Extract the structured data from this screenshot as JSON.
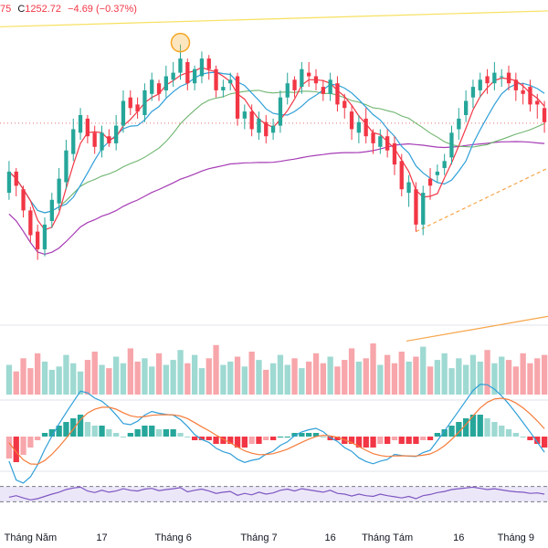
{
  "header": {
    "partial_prefix": "75",
    "close_label": "C",
    "close_value": "1252.72",
    "change": "−4.69",
    "change_pct": "(−0.37%)",
    "color_down": "#f23645"
  },
  "x_axis": {
    "ticks": [
      "Tháng Năm",
      "17",
      "Tháng 6",
      "Tháng 7",
      "16",
      "Tháng Tám",
      "16",
      "Tháng 9"
    ]
  },
  "colors": {
    "up": "#26a69a",
    "down": "#f23645",
    "vol_up": "#9ed9d2",
    "vol_down": "#f7a6ab",
    "ma_red": "#f23645",
    "ma_blue": "#2f9fd8",
    "ma_green": "#6fb56f",
    "ma_purple": "#a63bb5",
    "trend_yellow": "#f6e05e",
    "trend_orange": "#f6a54a",
    "price_line": "#e57373",
    "macd_line": "#2f9fd8",
    "signal_line": "#f57c3a",
    "rsi_line": "#7e57c2",
    "rsi_band": "#ece7f8"
  },
  "chart_data": {
    "type": "candlestick",
    "series_count": 76,
    "open": [
      1233,
      1239,
      1234,
      1228,
      1222,
      1217,
      1225,
      1230,
      1236,
      1244,
      1250,
      1254,
      1250,
      1245,
      1249,
      1247,
      1252,
      1260,
      1258,
      1255,
      1261,
      1264,
      1262,
      1265,
      1267,
      1270,
      1264,
      1266,
      1271,
      1268,
      1262,
      1264,
      1266,
      1254,
      1256,
      1250,
      1253,
      1250,
      1252,
      1260,
      1265,
      1263,
      1267,
      1266,
      1263,
      1261,
      1264,
      1259,
      1256,
      1250,
      1254,
      1250,
      1246,
      1249,
      1247,
      1242,
      1233,
      1234,
      1224,
      1237,
      1238,
      1240,
      1243,
      1251,
      1255,
      1260,
      1262,
      1266,
      1264,
      1266,
      1267,
      1265,
      1262,
      1263,
      1259,
      1257
    ],
    "close": [
      1239,
      1235,
      1228,
      1221,
      1217,
      1224,
      1231,
      1237,
      1245,
      1251,
      1255,
      1249,
      1246,
      1250,
      1247,
      1252,
      1259,
      1257,
      1256,
      1262,
      1265,
      1261,
      1266,
      1267,
      1271,
      1264,
      1268,
      1271,
      1268,
      1262,
      1263,
      1265,
      1254,
      1256,
      1251,
      1254,
      1249,
      1252,
      1260,
      1264,
      1262,
      1268,
      1266,
      1264,
      1261,
      1265,
      1258,
      1257,
      1251,
      1253,
      1249,
      1247,
      1249,
      1245,
      1241,
      1234,
      1236,
      1224,
      1233,
      1235,
      1239,
      1242,
      1250,
      1254,
      1259,
      1263,
      1265,
      1264,
      1267,
      1266,
      1264,
      1262,
      1261,
      1258,
      1258,
      1253
    ],
    "high": [
      1242,
      1240,
      1235,
      1229,
      1224,
      1226,
      1233,
      1240,
      1248,
      1254,
      1257,
      1255,
      1252,
      1252,
      1251,
      1255,
      1262,
      1262,
      1260,
      1264,
      1267,
      1265,
      1269,
      1270,
      1275,
      1271,
      1269,
      1273,
      1272,
      1269,
      1265,
      1267,
      1267,
      1258,
      1258,
      1256,
      1255,
      1254,
      1262,
      1267,
      1266,
      1270,
      1270,
      1268,
      1265,
      1267,
      1266,
      1261,
      1258,
      1255,
      1257,
      1251,
      1251,
      1251,
      1249,
      1244,
      1238,
      1236,
      1235,
      1240,
      1241,
      1244,
      1252,
      1257,
      1262,
      1265,
      1267,
      1268,
      1270,
      1268,
      1269,
      1267,
      1264,
      1265,
      1261,
      1259
    ],
    "low": [
      1231,
      1232,
      1226,
      1219,
      1214,
      1215,
      1223,
      1228,
      1234,
      1242,
      1248,
      1247,
      1244,
      1243,
      1246,
      1245,
      1250,
      1255,
      1254,
      1253,
      1259,
      1259,
      1260,
      1263,
      1265,
      1262,
      1262,
      1264,
      1265,
      1260,
      1260,
      1262,
      1252,
      1251,
      1249,
      1248,
      1247,
      1248,
      1250,
      1258,
      1260,
      1261,
      1263,
      1262,
      1259,
      1259,
      1256,
      1254,
      1248,
      1247,
      1247,
      1244,
      1244,
      1243,
      1238,
      1232,
      1229,
      1222,
      1221,
      1231,
      1236,
      1238,
      1241,
      1248,
      1253,
      1257,
      1260,
      1261,
      1262,
      1263,
      1262,
      1259,
      1258,
      1256,
      1254,
      1250
    ],
    "x_tick_labels": [
      "Tháng Năm",
      "17",
      "Tháng 6",
      "Tháng 7",
      "16",
      "Tháng Tám",
      "16",
      "Tháng 9"
    ],
    "last_close": 1252.72,
    "ylim": [
      1210,
      1285
    ],
    "volume": [
      18,
      14,
      22,
      16,
      25,
      20,
      15,
      17,
      24,
      19,
      14,
      21,
      26,
      18,
      16,
      23,
      19,
      28,
      20,
      22,
      17,
      25,
      18,
      21,
      27,
      19,
      24,
      16,
      22,
      30,
      18,
      20,
      23,
      17,
      26,
      21,
      15,
      19,
      24,
      18,
      22,
      16,
      20,
      25,
      19,
      23,
      17,
      21,
      28,
      20,
      22,
      31,
      18,
      24,
      19,
      26,
      20,
      23,
      29,
      17,
      21,
      25,
      16,
      22,
      18,
      24,
      20,
      27,
      19,
      23,
      21,
      17,
      25,
      19,
      22,
      24
    ],
    "macd_hist": [
      -6,
      -7,
      -5,
      -3,
      -1,
      1,
      2,
      3,
      4,
      5,
      6,
      4,
      3,
      3,
      2,
      1,
      0,
      1,
      2,
      3,
      3,
      2,
      2,
      2,
      1,
      0,
      -1,
      -1,
      -1,
      -2,
      -2,
      -2,
      -3,
      -3,
      -2,
      -2,
      -1,
      -1,
      0,
      0,
      1,
      1,
      1,
      1,
      0,
      -1,
      -1,
      -2,
      -2,
      -3,
      -3,
      -3,
      -2,
      -2,
      -1,
      -2,
      -2,
      -2,
      -1,
      -1,
      1,
      2,
      3,
      4,
      5,
      6,
      6,
      5,
      4,
      3,
      2,
      1,
      0,
      -1,
      -2,
      -3
    ],
    "rsi": [
      42,
      46,
      40,
      35,
      38,
      44,
      50,
      55,
      62,
      66,
      68,
      58,
      54,
      60,
      55,
      58,
      64,
      60,
      58,
      63,
      65,
      59,
      62,
      64,
      67,
      56,
      60,
      63,
      58,
      52,
      55,
      57,
      47,
      52,
      48,
      55,
      50,
      53,
      60,
      63,
      58,
      64,
      61,
      58,
      55,
      60,
      52,
      50,
      45,
      50,
      46,
      44,
      50,
      46,
      43,
      40,
      44,
      38,
      46,
      49,
      54,
      57,
      62,
      64,
      66,
      68,
      65,
      62,
      64,
      61,
      58,
      56,
      55,
      52,
      53,
      50
    ],
    "rsi_band": [
      30,
      70
    ]
  }
}
